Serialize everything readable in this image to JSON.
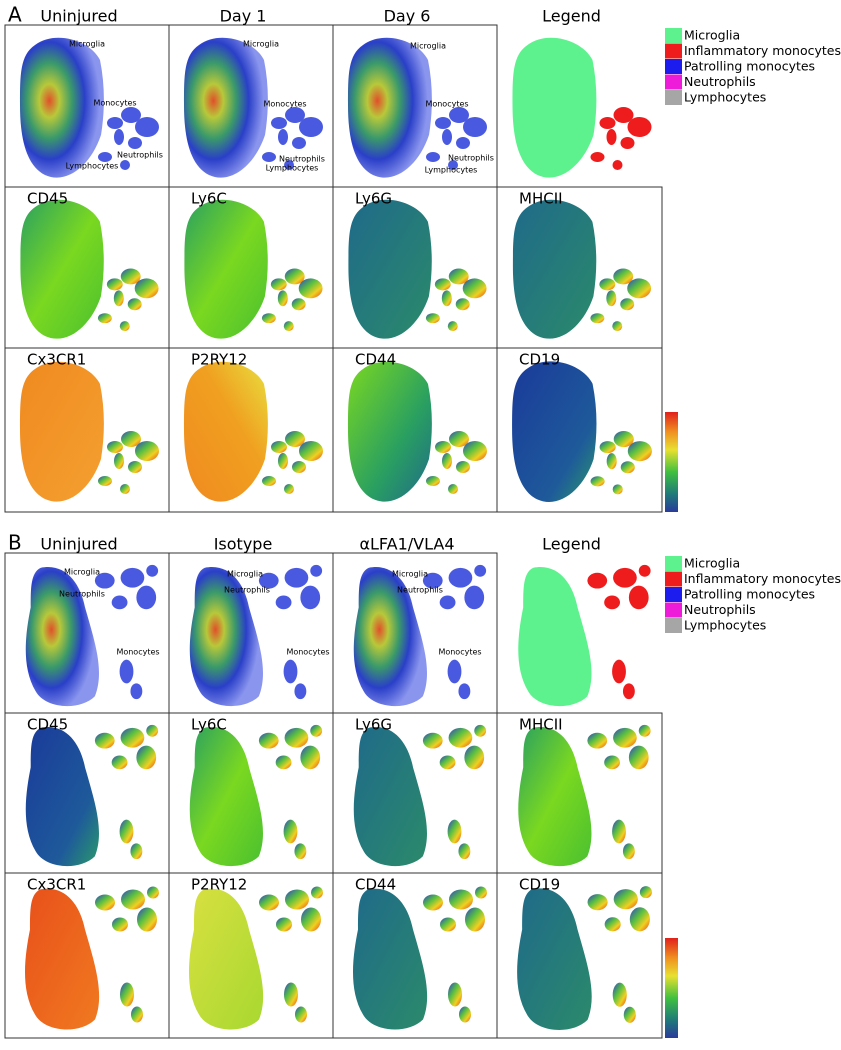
{
  "panels": [
    {
      "label": "A",
      "column_titles": [
        "Uninjured",
        "Day 1",
        "Day 6",
        "Legend"
      ],
      "plots": [
        {
          "annotations": [
            "Microglia",
            "Monocytes",
            "Neutrophils",
            "Lymphocytes"
          ]
        },
        {
          "annotations": [
            "Microglia",
            "Monocytes",
            "Neutrophils",
            "Lymphocytes"
          ]
        },
        {
          "annotations": [
            "Microglia",
            "Monocytes",
            "Neutrophils",
            "Lymphocytes"
          ]
        }
      ],
      "marker_rows": [
        [
          "CD45",
          "Ly6C",
          "Ly6G",
          "MHCII"
        ],
        [
          "Cx3CR1",
          "P2RY12",
          "CD44",
          "CD19"
        ]
      ],
      "legend": [
        {
          "name": "Microglia",
          "color": "#5ef28f"
        },
        {
          "name": "Inflammatory monocytes",
          "color": "#ee1c1c"
        },
        {
          "name": "Patrolling monocytes",
          "color": "#1c1cee"
        },
        {
          "name": "Neutrophils",
          "color": "#ee1cd8"
        },
        {
          "name": "Lymphocytes",
          "color": "#a6a6a6"
        }
      ]
    },
    {
      "label": "B",
      "column_titles": [
        "Uninjured",
        "Isotype",
        "αLFA1/VLA4",
        "Legend"
      ],
      "plots": [
        {
          "annotations": [
            "Microglia",
            "Neutrophils",
            "Monocytes"
          ]
        },
        {
          "annotations": [
            "Microglia",
            "Neutrophils",
            "Monocytes"
          ]
        },
        {
          "annotations": [
            "Microglia",
            "Neutrophils",
            "Monocytes"
          ]
        }
      ],
      "marker_rows": [
        [
          "CD45",
          "Ly6C",
          "Ly6G",
          "MHCII"
        ],
        [
          "Cx3CR1",
          "P2RY12",
          "CD44",
          "CD19"
        ]
      ],
      "legend": [
        {
          "name": "Microglia",
          "color": "#5ef28f"
        },
        {
          "name": "Inflammatory monocytes",
          "color": "#ee1c1c"
        },
        {
          "name": "Patrolling monocytes",
          "color": "#1c1cee"
        },
        {
          "name": "Neutrophils",
          "color": "#ee1cd8"
        },
        {
          "name": "Lymphocytes",
          "color": "#a6a6a6"
        }
      ]
    }
  ]
}
